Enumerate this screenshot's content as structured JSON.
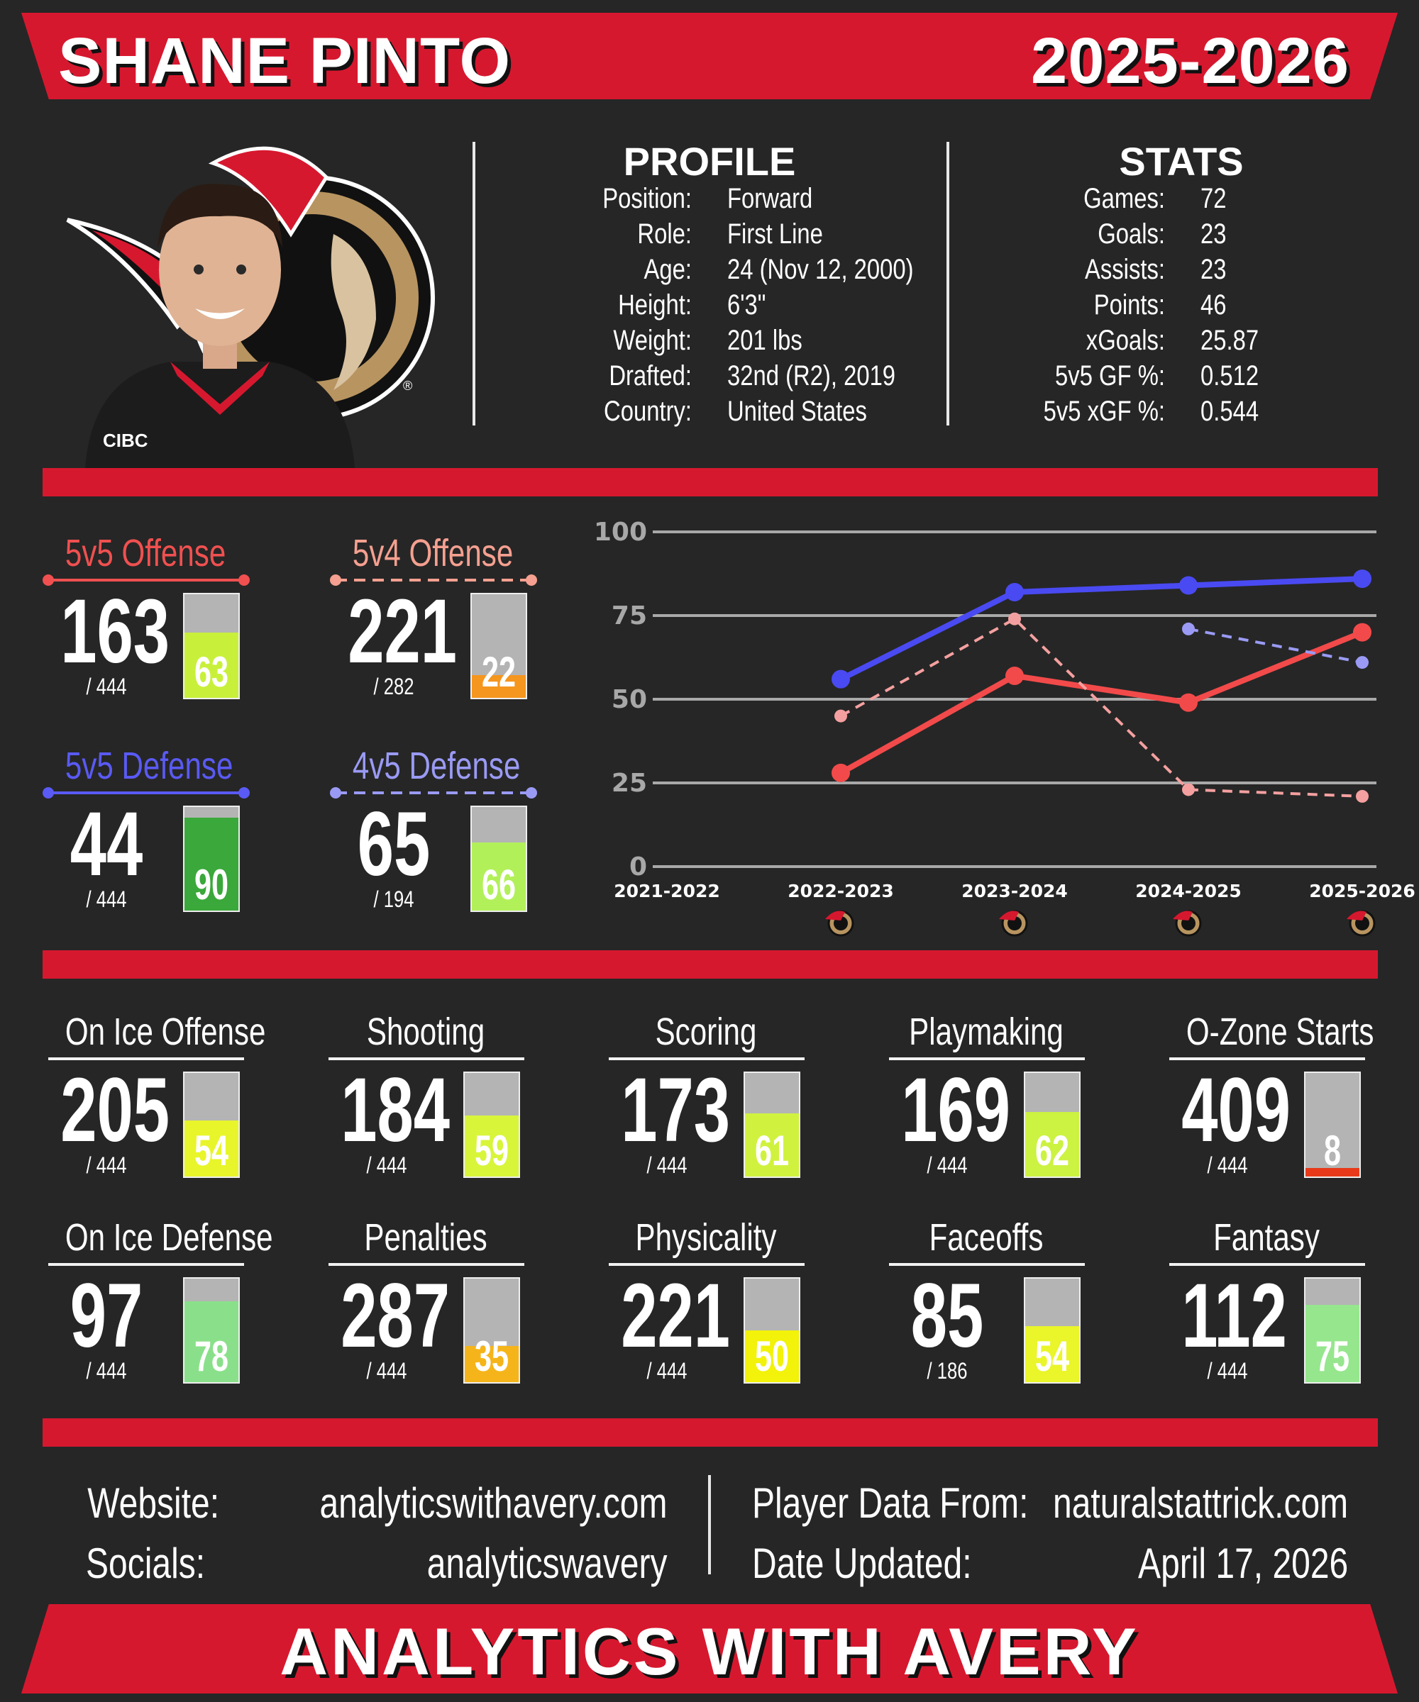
{
  "header": {
    "player_name": "SHANE PINTO",
    "season": "2025-2026"
  },
  "profile": {
    "heading": "PROFILE",
    "rows": [
      {
        "label": "Position:",
        "value": "Forward"
      },
      {
        "label": "Role:",
        "value": "First Line"
      },
      {
        "label": "Age:",
        "value": "24 (Nov 12, 2000)"
      },
      {
        "label": "Height:",
        "value": "6'3\""
      },
      {
        "label": "Weight:",
        "value": "201 lbs"
      },
      {
        "label": "Drafted:",
        "value": "32nd (R2), 2019"
      },
      {
        "label": "Country:",
        "value": "United States"
      }
    ]
  },
  "stats": {
    "heading": "STATS",
    "rows": [
      {
        "label": "Games:",
        "value": "72"
      },
      {
        "label": "Goals:",
        "value": "23"
      },
      {
        "label": "Assists:",
        "value": "23"
      },
      {
        "label": "Points:",
        "value": "46"
      },
      {
        "label": "xGoals:",
        "value": "25.87"
      },
      {
        "label": "5v5 GF %:",
        "value": "0.512"
      },
      {
        "label": "5v5 xGF %:",
        "value": "0.544"
      }
    ]
  },
  "special_tiles": [
    {
      "title": "5v5 Offense",
      "rank": "163",
      "total": "/ 444",
      "pct": 63,
      "pct_label": "63",
      "title_color": "#f05050",
      "fill": "#c8f03a",
      "line_style": "solid"
    },
    {
      "title": "5v4 Offense",
      "rank": "221",
      "total": "/ 282",
      "pct": 22,
      "pct_label": "22",
      "title_color": "#f5a090",
      "fill": "#f5961e",
      "line_style": "dashed"
    },
    {
      "title": "5v5 Defense",
      "rank": "44",
      "total": "/ 444",
      "pct": 90,
      "pct_label": "90",
      "title_color": "#5a5af5",
      "fill": "#3aa83a",
      "line_style": "solid"
    },
    {
      "title": "4v5 Defense",
      "rank": "65",
      "total": "/ 194",
      "pct": 66,
      "pct_label": "66",
      "title_color": "#9a9af5",
      "fill": "#b2f05a",
      "line_style": "dashed"
    }
  ],
  "chart_data": {
    "type": "line",
    "x": [
      "2021-2022",
      "2022-2023",
      "2023-2024",
      "2024-2025",
      "2025-2026"
    ],
    "ylim": [
      0,
      100
    ],
    "yticks": [
      "0",
      "25",
      "50",
      "75",
      "100"
    ],
    "grid": true,
    "series": [
      {
        "color": "#4a4af2",
        "style": "solid",
        "values": [
          null,
          56,
          82,
          84,
          86
        ]
      },
      {
        "color": "#f24a4a",
        "style": "solid",
        "values": [
          null,
          28,
          57,
          49,
          70
        ]
      },
      {
        "color": "#f5a0a0",
        "style": "dashed",
        "values": [
          null,
          45,
          74,
          23,
          21
        ]
      },
      {
        "color": "#9a9af5",
        "style": "dashed",
        "values": [
          null,
          null,
          null,
          71,
          61
        ]
      }
    ]
  },
  "metric_tiles": [
    {
      "title": "On Ice Offense",
      "rank": "205",
      "total": "/ 444",
      "pct": 54,
      "pct_label": "54",
      "fill": "#e8f52a"
    },
    {
      "title": "Shooting",
      "rank": "184",
      "total": "/ 444",
      "pct": 59,
      "pct_label": "59",
      "fill": "#d8f53a"
    },
    {
      "title": "Scoring",
      "rank": "173",
      "total": "/ 444",
      "pct": 61,
      "pct_label": "61",
      "fill": "#d0f23e"
    },
    {
      "title": "Playmaking",
      "rank": "169",
      "total": "/ 444",
      "pct": 62,
      "pct_label": "62",
      "fill": "#ccf242"
    },
    {
      "title": "O-Zone Starts",
      "rank": "409",
      "total": "/ 444",
      "pct": 8,
      "pct_label": "8",
      "fill": "#e83a1a"
    },
    {
      "title": "On Ice Defense",
      "rank": "97",
      "total": "/ 444",
      "pct": 78,
      "pct_label": "78",
      "fill": "#8ae08a"
    },
    {
      "title": "Penalties",
      "rank": "287",
      "total": "/ 444",
      "pct": 35,
      "pct_label": "35",
      "fill": "#f5b51a"
    },
    {
      "title": "Physicality",
      "rank": "221",
      "total": "/ 444",
      "pct": 50,
      "pct_label": "50",
      "fill": "#f2f20a"
    },
    {
      "title": "Faceoffs",
      "rank": "85",
      "total": "/ 186",
      "pct": 54,
      "pct_label": "54",
      "fill": "#eaf52a"
    },
    {
      "title": "Fantasy",
      "rank": "112",
      "total": "/ 444",
      "pct": 75,
      "pct_label": "75",
      "fill": "#96e68e"
    }
  ],
  "footer": {
    "website_label": "Website:",
    "website": "analyticswithavery.com",
    "socials_label": "Socials:",
    "socials": "analyticswavery",
    "data_label": "Player Data From:",
    "data_source": "naturalstattrick.com",
    "updated_label": "Date Updated:",
    "updated": "April 17, 2026"
  },
  "bottom_banner": "ANALYTICS WITH AVERY",
  "photo": {
    "jersey_sponsor": "CIBC"
  },
  "icons": {
    "team_logo": "senators-logo-icon",
    "player_photo": "player-headshot"
  }
}
